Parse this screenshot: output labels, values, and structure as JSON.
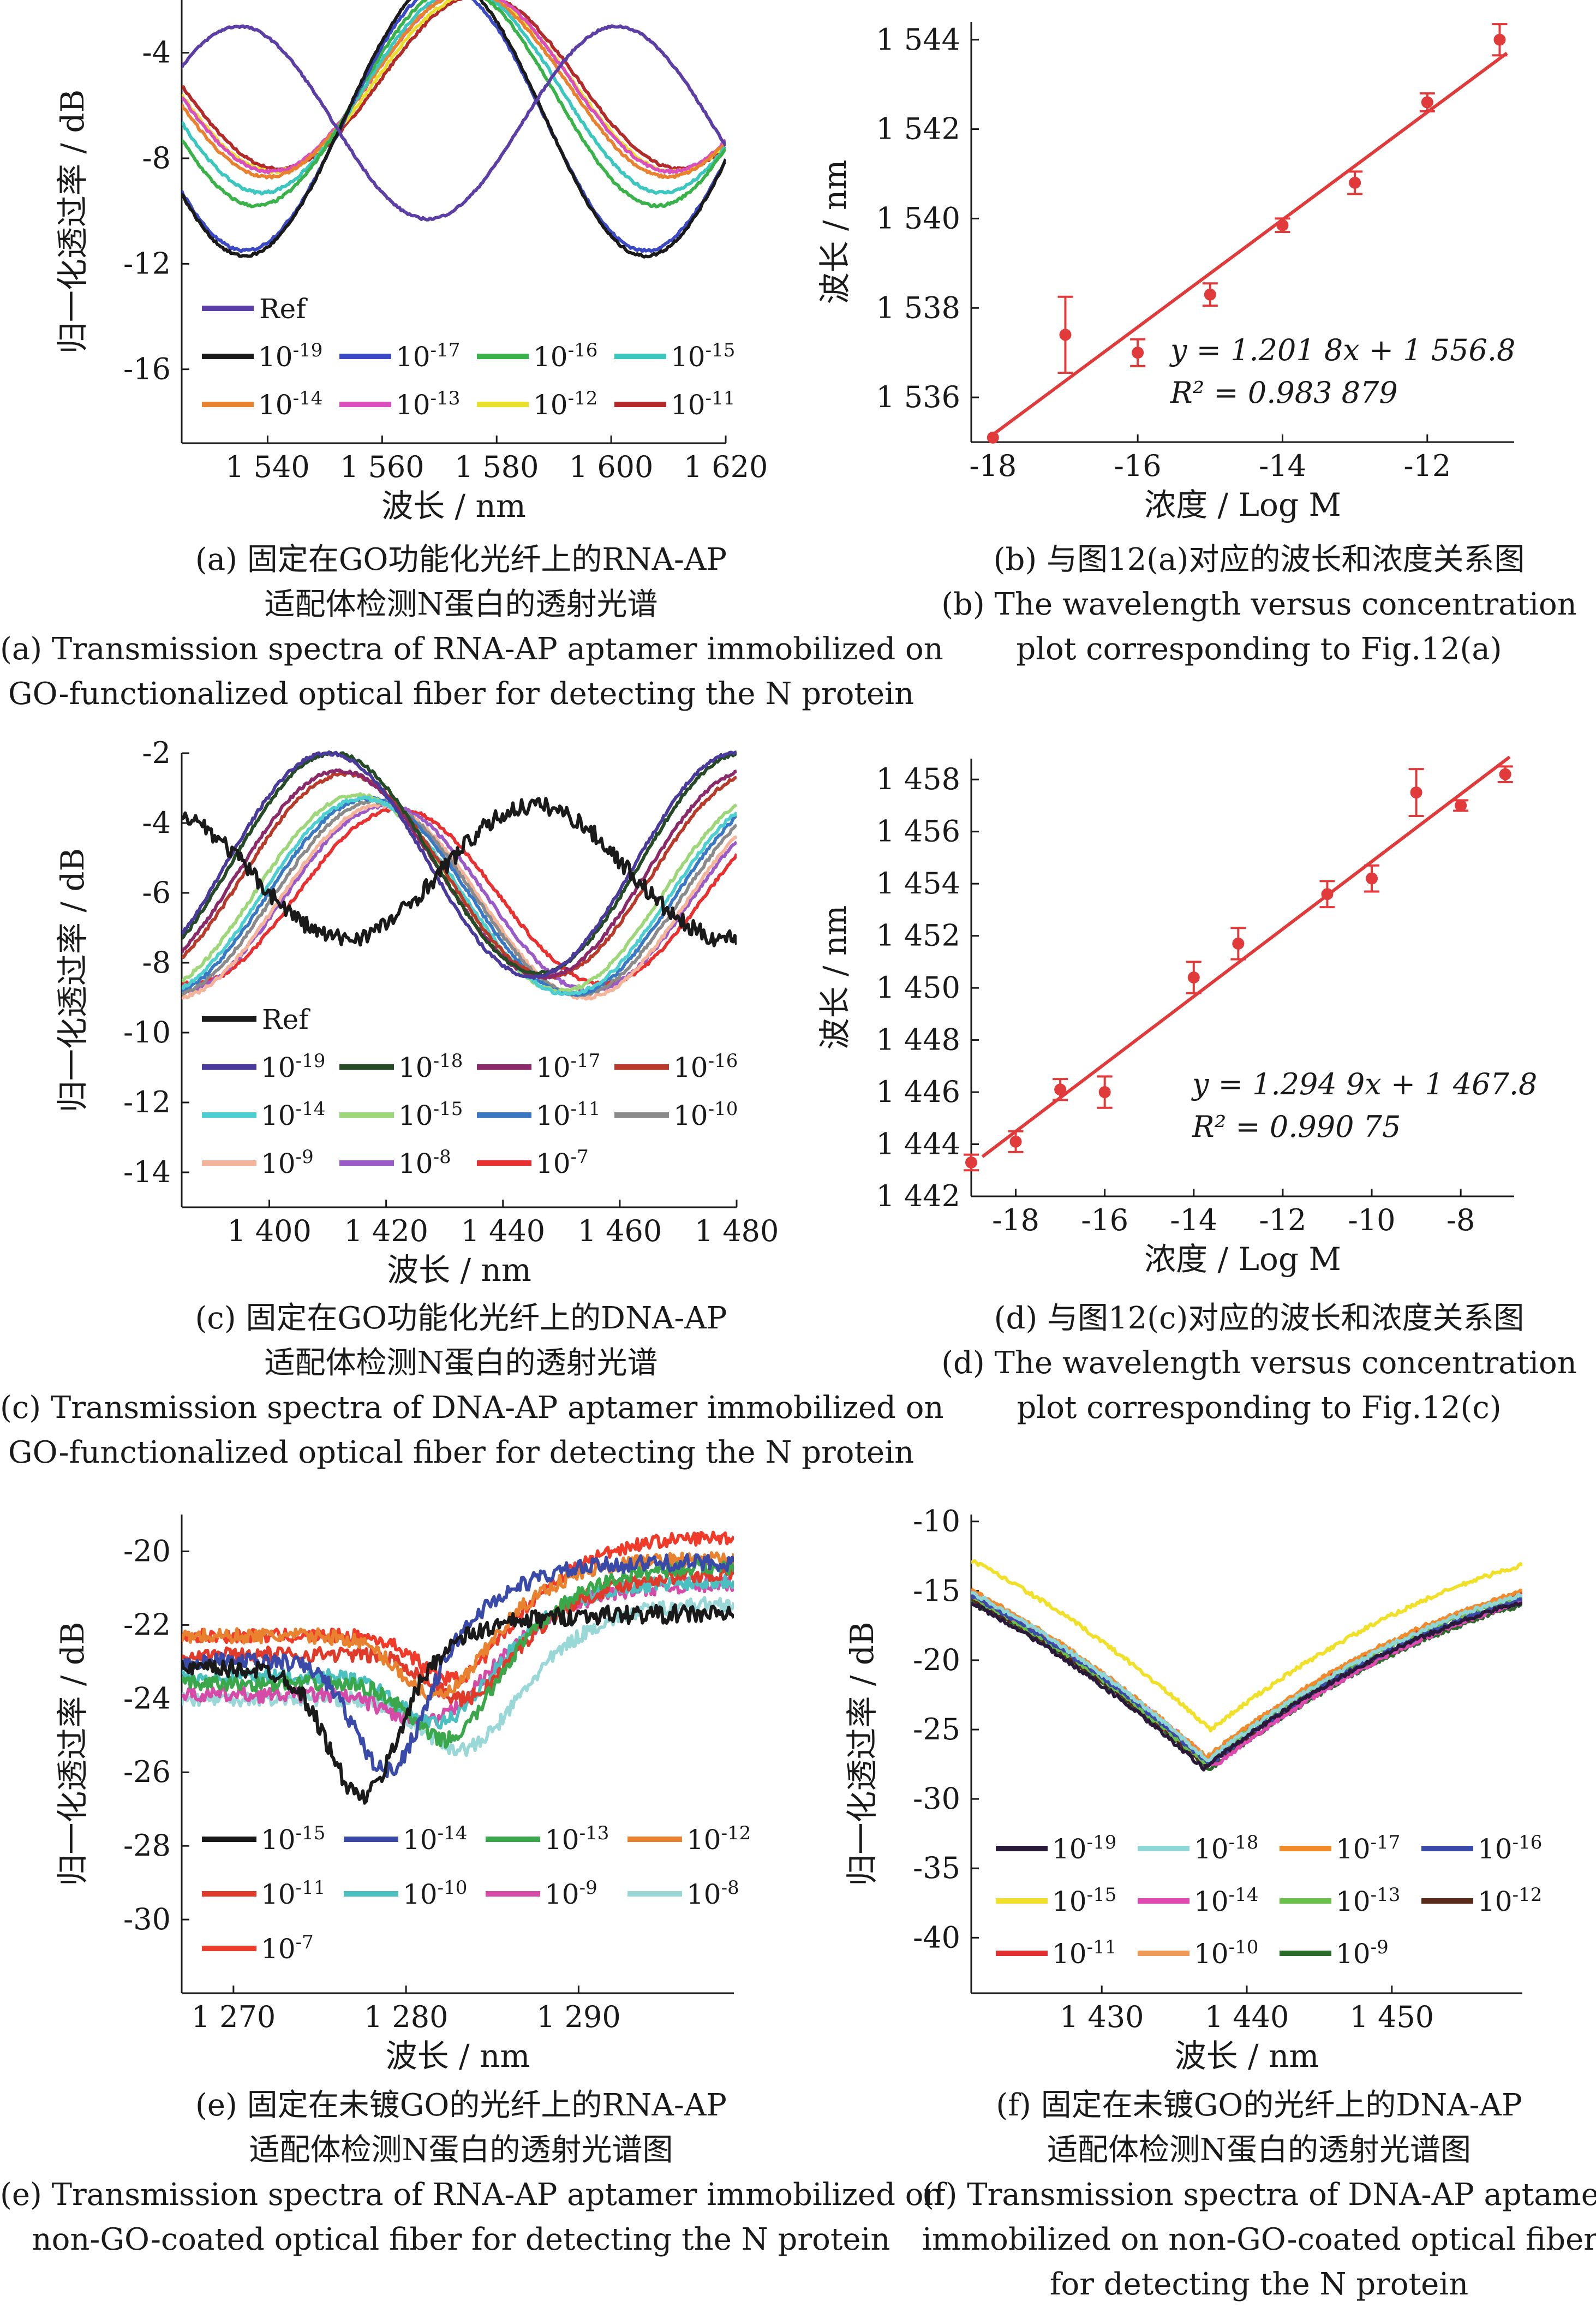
{
  "chart_data": [
    {
      "id": "a",
      "type": "line",
      "xlabel": "波长 / nm",
      "ylabel": "归一化透过率 / dB",
      "xlim": [
        1525,
        1620
      ],
      "ylim": [
        -18.8,
        -2
      ],
      "xticks": [
        1540,
        1560,
        1580,
        1600,
        1620
      ],
      "xtick_labels": [
        "1 540",
        "1 560",
        "1 580",
        "1 600",
        "1 620"
      ],
      "yticks": [
        -4,
        -8,
        -12,
        -16
      ],
      "ytick_labels": [
        "-4",
        "-8",
        "-12",
        "-16"
      ],
      "legend_location": "lower-left",
      "series": [
        {
          "name": "Ref",
          "color": "#5b3fa6",
          "center": 1568,
          "period": 66,
          "depth": 7.3,
          "top": -3.0,
          "noise": 0.04
        },
        {
          "name": "10-19",
          "color": "#1a1a1a",
          "center": 1536,
          "period": 70,
          "depth": 10.5,
          "top": -1.2,
          "noise": 0.05
        },
        {
          "name": "10-17",
          "color": "#3b49c4",
          "center": 1606,
          "period": 70,
          "depth": 10.0,
          "top": -1.5,
          "noise": 0.05
        },
        {
          "name": "10-16",
          "color": "#39b24a",
          "center": 1538,
          "period": 70,
          "depth": 8.3,
          "top": -1.5,
          "noise": 0.05
        },
        {
          "name": "10-15",
          "color": "#3cc6c0",
          "center": 1539,
          "period": 70,
          "depth": 7.7,
          "top": -1.6,
          "noise": 0.05
        },
        {
          "name": "10-14",
          "color": "#e9822f",
          "center": 1540,
          "period": 70,
          "depth": 7.0,
          "top": -1.7,
          "noise": 0.05
        },
        {
          "name": "10-13",
          "color": "#d94fbd",
          "center": 1540.5,
          "period": 70,
          "depth": 6.9,
          "top": -1.6,
          "noise": 0.05
        },
        {
          "name": "10-12",
          "color": "#e8e02c",
          "center": 1541,
          "period": 70,
          "depth": 6.7,
          "top": -1.8,
          "noise": 0.05
        },
        {
          "name": "10-11",
          "color": "#b32a2a",
          "center": 1542,
          "period": 70,
          "depth": 6.6,
          "top": -1.8,
          "noise": 0.05
        }
      ]
    },
    {
      "id": "b",
      "type": "scatter",
      "xlabel": "浓度 / Log M",
      "ylabel": "波长 / nm",
      "xlim": [
        -18.3,
        -10.8
      ],
      "ylim": [
        1535,
        1544.4
      ],
      "xticks": [
        -18,
        -16,
        -14,
        -12
      ],
      "xtick_labels": [
        "-18",
        "-16",
        "-14",
        "-12"
      ],
      "yticks": [
        1536,
        1538,
        1540,
        1542,
        1544
      ],
      "ytick_labels": [
        "1 536",
        "1 538",
        "1 540",
        "1 542",
        "1 544"
      ],
      "x": [
        -18,
        -17,
        -16,
        -15,
        -14,
        -13,
        -12,
        -11
      ],
      "y": [
        1535.1,
        1537.4,
        1537.0,
        1538.3,
        1539.85,
        1540.8,
        1542.6,
        1544.0
      ],
      "yerr": [
        0.0,
        0.85,
        0.3,
        0.25,
        0.15,
        0.25,
        0.2,
        0.35
      ],
      "fit": {
        "slope": 1.2018,
        "intercept": 1556.8
      },
      "equation": "y = 1.201 8x + 1 556.8",
      "r2": "R² = 0.983 879",
      "color": "#e03a3a"
    },
    {
      "id": "c",
      "type": "line",
      "xlabel": "波长 / nm",
      "ylabel": "归一化透过率 / dB",
      "xlim": [
        1385,
        1480
      ],
      "ylim": [
        -15,
        -2
      ],
      "xticks": [
        1400,
        1420,
        1440,
        1460,
        1480
      ],
      "xtick_labels": [
        "1 400",
        "1 420",
        "1 440",
        "1 460",
        "1 480"
      ],
      "yticks": [
        -2,
        -4,
        -6,
        -8,
        -10,
        -12,
        -14
      ],
      "ytick_labels": [
        "-2",
        "-4",
        "-6",
        "-8",
        "-10",
        "-12",
        "-14"
      ],
      "legend_location": "lower-left",
      "series": [
        {
          "name": "Ref",
          "color": "#1a1a1a",
          "center": 1413,
          "period": 65,
          "depth": 3.8,
          "top": -3.5,
          "noise": 0.25
        },
        {
          "name": "10-19",
          "color": "#4a3a9c",
          "center": 1445,
          "period": 70,
          "depth": 6.4,
          "top": -2.0,
          "noise": 0.05
        },
        {
          "name": "10-18",
          "color": "#244a26",
          "center": 1446,
          "period": 70,
          "depth": 6.3,
          "top": -2.0,
          "noise": 0.05
        },
        {
          "name": "10-17",
          "color": "#8a2a6a",
          "center": 1447,
          "period": 70,
          "depth": 5.9,
          "top": -2.5,
          "noise": 0.05
        },
        {
          "name": "10-16",
          "color": "#b83a2a",
          "center": 1448,
          "period": 70,
          "depth": 5.8,
          "top": -2.6,
          "noise": 0.05
        },
        {
          "name": "10-14",
          "color": "#4dcfd2",
          "center": 1451,
          "period": 70,
          "depth": 5.6,
          "top": -3.3,
          "noise": 0.05
        },
        {
          "name": "10-15",
          "color": "#9ed67a",
          "center": 1450,
          "period": 70,
          "depth": 5.6,
          "top": -3.2,
          "noise": 0.05
        },
        {
          "name": "10-11",
          "color": "#3a78c4",
          "center": 1452,
          "period": 70,
          "depth": 5.6,
          "top": -3.3,
          "noise": 0.05
        },
        {
          "name": "10-10",
          "color": "#8a8a8a",
          "center": 1453,
          "period": 70,
          "depth": 5.5,
          "top": -3.4,
          "noise": 0.05
        },
        {
          "name": "10-9",
          "color": "#f4b49a",
          "center": 1454,
          "period": 70,
          "depth": 5.5,
          "top": -3.5,
          "noise": 0.05
        },
        {
          "name": "10-8",
          "color": "#9a5ac8",
          "center": 1455,
          "period": 70,
          "depth": 5.3,
          "top": -3.5,
          "noise": 0.05
        },
        {
          "name": "10-7",
          "color": "#e83030",
          "center": 1457,
          "period": 70,
          "depth": 5.0,
          "top": -3.6,
          "noise": 0.05
        }
      ]
    },
    {
      "id": "d",
      "type": "scatter",
      "xlabel": "浓度 / Log M",
      "ylabel": "波长 / nm",
      "xlim": [
        -19,
        -6.8
      ],
      "ylim": [
        1442,
        1458.8
      ],
      "xticks": [
        -18,
        -16,
        -14,
        -12,
        -10,
        -8
      ],
      "xtick_labels": [
        "-18",
        "-16",
        "-14",
        "-12",
        "-10",
        "-8"
      ],
      "yticks": [
        1442,
        1444,
        1446,
        1448,
        1450,
        1452,
        1454,
        1456,
        1458
      ],
      "ytick_labels": [
        "1 442",
        "1 444",
        "1 446",
        "1 448",
        "1 450",
        "1 452",
        "1 454",
        "1 456",
        "1 458"
      ],
      "x": [
        -19,
        -18,
        -17,
        -16,
        -14,
        -13,
        -11,
        -10,
        -9,
        -8,
        -7
      ],
      "y": [
        1443.3,
        1444.1,
        1446.1,
        1446.0,
        1450.4,
        1451.7,
        1453.6,
        1454.2,
        1457.5,
        1457.0,
        1458.2
      ],
      "yerr": [
        0.3,
        0.4,
        0.4,
        0.6,
        0.6,
        0.6,
        0.5,
        0.5,
        0.9,
        0.2,
        0.3
      ],
      "fit": {
        "slope": 1.2949,
        "intercept": 1467.8
      },
      "equation": "y = 1.294 9x + 1 467.8",
      "r2": "R² = 0.990 75",
      "color": "#e03a3a"
    },
    {
      "id": "e",
      "type": "line",
      "xlabel": "波长 / nm",
      "ylabel": "归一化透过率 / dB",
      "xlim": [
        1267,
        1299
      ],
      "ylim": [
        -32,
        -19
      ],
      "xticks": [
        1270,
        1280,
        1290
      ],
      "xtick_labels": [
        "1 270",
        "1 280",
        "1 290"
      ],
      "yticks": [
        -20,
        -22,
        -24,
        -26,
        -28,
        -30
      ],
      "ytick_labels": [
        "-20",
        "-22",
        "-24",
        "-26",
        "-28",
        "-30"
      ],
      "legend_location": "lower-left",
      "series": [
        {
          "name": "10-15",
          "color": "#1a1a1a",
          "center": 1277.5,
          "width": 2.8,
          "base": -23.2,
          "depth": 3.6,
          "tail": -21.7,
          "noise": 0.25
        },
        {
          "name": "10-14",
          "color": "#3a4aa8",
          "center": 1279,
          "width": 2.8,
          "base": -23.0,
          "depth": 3.2,
          "tail": -20.3,
          "noise": 0.22
        },
        {
          "name": "10-13",
          "color": "#3aa84a",
          "center": 1282.5,
          "width": 3.0,
          "base": -23.6,
          "depth": 1.8,
          "tail": -20.4,
          "noise": 0.2
        },
        {
          "name": "10-12",
          "color": "#e9822f",
          "center": 1282,
          "width": 3.2,
          "base": -22.3,
          "depth": 1.8,
          "tail": -20.2,
          "noise": 0.2
        },
        {
          "name": "10-11",
          "color": "#e03a2a",
          "center": 1283.5,
          "width": 3.0,
          "base": -22.8,
          "depth": 1.4,
          "tail": -20.6,
          "noise": 0.2
        },
        {
          "name": "10-10",
          "color": "#4ac0c0",
          "center": 1282,
          "width": 3.2,
          "base": -23.4,
          "depth": 1.5,
          "tail": -20.8,
          "noise": 0.2
        },
        {
          "name": "10-9",
          "color": "#d64aa8",
          "center": 1281.5,
          "width": 3.2,
          "base": -23.9,
          "depth": 1.0,
          "tail": -20.9,
          "noise": 0.2
        },
        {
          "name": "10-8",
          "color": "#9ad8d8",
          "center": 1283.5,
          "width": 3.4,
          "base": -24.0,
          "depth": 1.6,
          "tail": -21.4,
          "noise": 0.2
        },
        {
          "name": "10-7",
          "color": "#f03a2a",
          "center": 1283,
          "width": 3.0,
          "base": -22.3,
          "depth": 1.4,
          "tail": -19.6,
          "noise": 0.18
        }
      ]
    },
    {
      "id": "f",
      "type": "line",
      "xlabel": "波长 / nm",
      "ylabel": "归一化透过率 / dB",
      "xlim": [
        1421,
        1459
      ],
      "ylim": [
        -44,
        -9.5
      ],
      "xticks": [
        1430,
        1440,
        1450
      ],
      "xtick_labels": [
        "1 430",
        "1 440",
        "1 450"
      ],
      "yticks": [
        -10,
        -15,
        -20,
        -25,
        -30,
        -35,
        -40
      ],
      "ytick_labels": [
        "-10",
        "-15",
        "-20",
        "-25",
        "-30",
        "-35",
        "-40"
      ],
      "legend_location": "lower-left",
      "series": [
        {
          "name": "10-19",
          "color": "#2a1a3a",
          "center": 1437.0,
          "min": -27.8,
          "noise": 0.15
        },
        {
          "name": "10-18",
          "color": "#8fd6d6",
          "center": 1437.3,
          "min": -27.2,
          "noise": 0.15
        },
        {
          "name": "10-17",
          "color": "#f08a2a",
          "center": 1437.2,
          "min": -27.0,
          "noise": 0.15
        },
        {
          "name": "10-16",
          "color": "#3a4aa8",
          "center": 1437.4,
          "min": -27.5,
          "noise": 0.15
        },
        {
          "name": "10-15",
          "color": "#f0e02a",
          "center": 1437.5,
          "min": -25.0,
          "noise": 0.15
        },
        {
          "name": "10-14",
          "color": "#e04ab0",
          "center": 1437.8,
          "min": -27.6,
          "noise": 0.15
        },
        {
          "name": "10-13",
          "color": "#6ac04a",
          "center": 1437.1,
          "min": -27.4,
          "noise": 0.15
        },
        {
          "name": "10-12",
          "color": "#5a2a1a",
          "center": 1437.3,
          "min": -27.7,
          "noise": 0.15
        },
        {
          "name": "10-11",
          "color": "#e03030",
          "center": 1437.0,
          "min": -27.3,
          "noise": 0.15
        },
        {
          "name": "10-10",
          "color": "#f09a5a",
          "center": 1437.2,
          "min": -27.1,
          "noise": 0.15
        },
        {
          "name": "10-9",
          "color": "#2a6a2a",
          "center": 1437.4,
          "min": -27.9,
          "noise": 0.15
        }
      ]
    }
  ],
  "captions": {
    "a": {
      "zh1": "(a) 固定在GO功能化光纤上的RNA-AP",
      "zh2": "适配体检测N蛋白的透射光谱",
      "en1": "(a) Transmission spectra of RNA-AP aptamer immobilized on",
      "en2": "GO-functionalized optical fiber for detecting the N protein"
    },
    "b": {
      "zh1": "(b) 与图12(a)对应的波长和浓度关系图",
      "en1": "(b) The wavelength versus concentration",
      "en2": "plot corresponding to Fig.12(a)"
    },
    "c": {
      "zh1": "(c) 固定在GO功能化光纤上的DNA-AP",
      "zh2": "适配体检测N蛋白的透射光谱",
      "en1": "(c) Transmission spectra of DNA-AP aptamer immobilized on",
      "en2": "GO-functionalized optical fiber for detecting the N protein"
    },
    "d": {
      "zh1": "(d) 与图12(c)对应的波长和浓度关系图",
      "en1": "(d) The wavelength versus concentration",
      "en2": "plot corresponding to Fig.12(c)"
    },
    "e": {
      "zh1": "(e) 固定在未镀GO的光纤上的RNA-AP",
      "zh2": "适配体检测N蛋白的透射光谱图",
      "en1": "(e) Transmission spectra of RNA-AP aptamer immobilized on",
      "en2": "non-GO-coated optical fiber for detecting the N protein"
    },
    "f": {
      "zh1": "(f) 固定在未镀GO的光纤上的DNA-AP",
      "zh2": "适配体检测N蛋白的透射光谱图",
      "en1": "(f) Transmission spectra of DNA-AP aptamer",
      "en2": "immobilized on non-GO-coated optical fiber",
      "en3": "for detecting the N protein"
    }
  }
}
